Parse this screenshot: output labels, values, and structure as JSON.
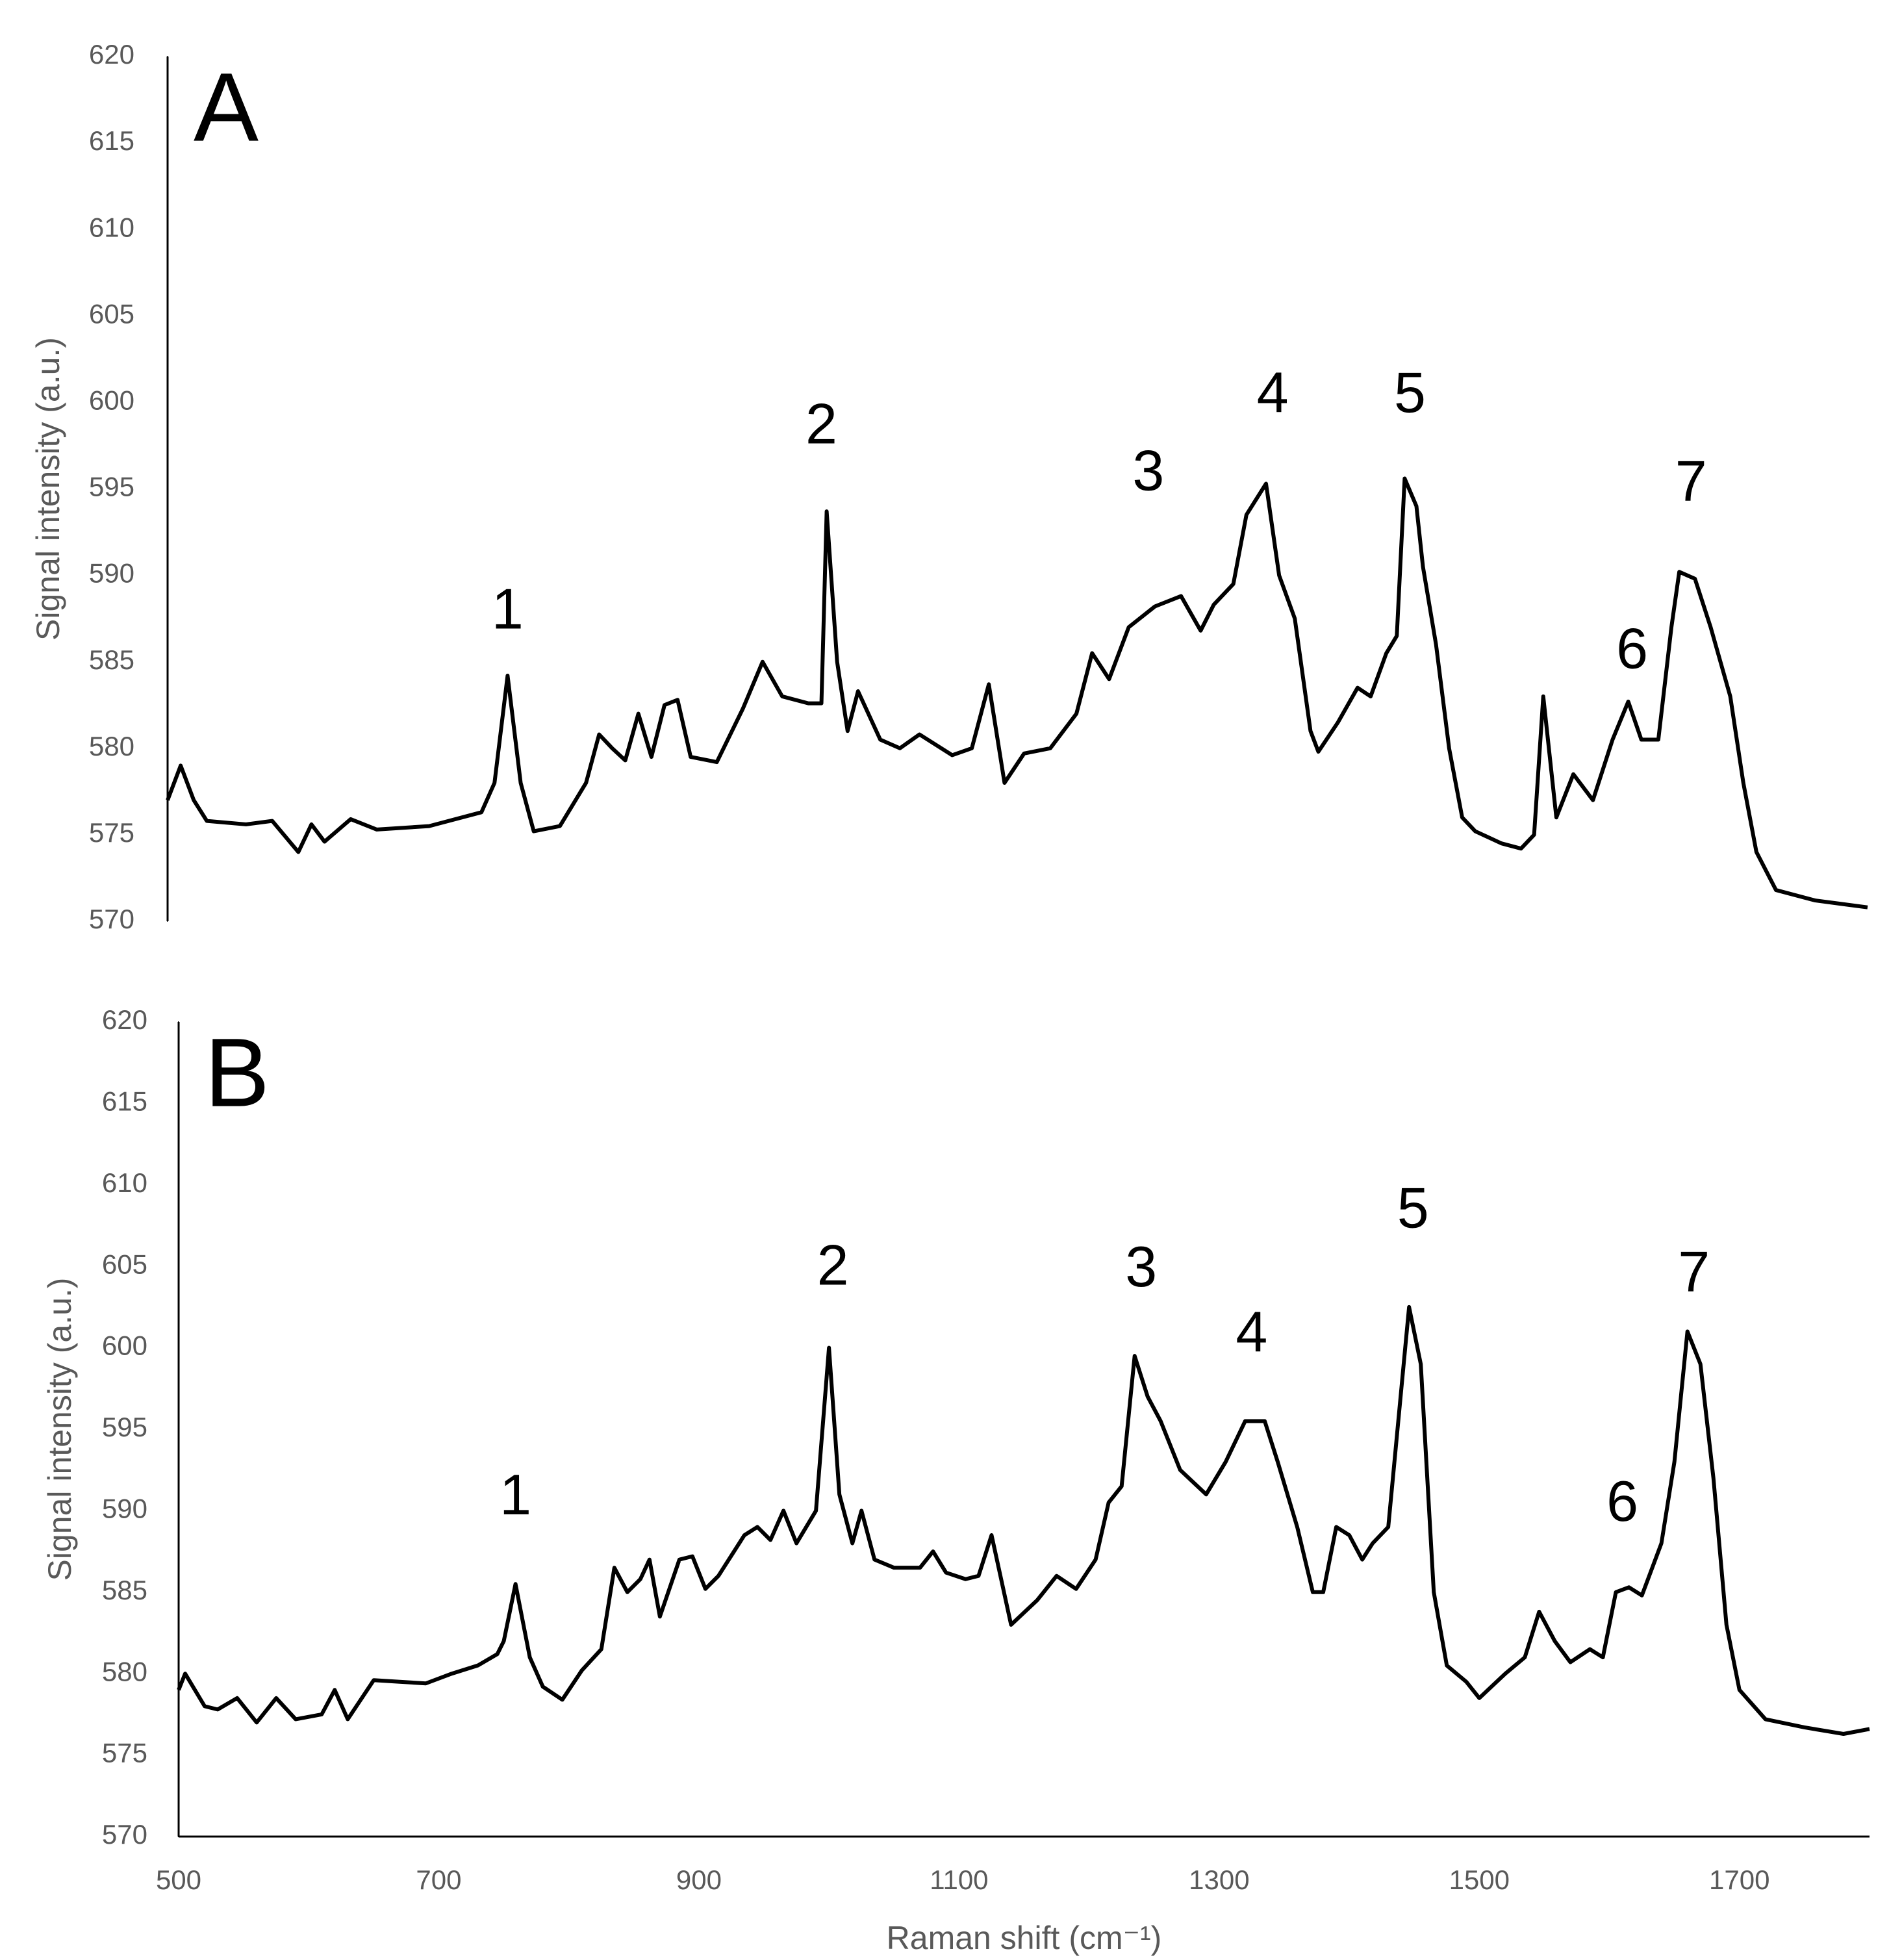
{
  "chart_data": [
    {
      "type": "line",
      "label": "A",
      "y_label": "Signal intensity (a.u.)",
      "xlim": [
        500,
        1800
      ],
      "ylim": [
        570,
        620
      ],
      "yticks": [
        570,
        575,
        580,
        585,
        590,
        595,
        600,
        605,
        610,
        615,
        620
      ],
      "x": [
        500,
        510,
        520,
        530,
        560,
        580,
        600,
        610,
        620,
        640,
        660,
        700,
        740,
        750,
        760,
        770,
        780,
        800,
        820,
        830,
        840,
        850,
        860,
        870,
        880,
        890,
        900,
        920,
        940,
        955,
        970,
        990,
        1000,
        1004,
        1012,
        1020,
        1028,
        1045,
        1060,
        1075,
        1100,
        1115,
        1128,
        1140,
        1155,
        1175,
        1195,
        1207,
        1220,
        1235,
        1255,
        1275,
        1290,
        1300,
        1315,
        1325,
        1340,
        1350,
        1362,
        1374,
        1380,
        1395,
        1410,
        1420,
        1432,
        1440,
        1446,
        1455,
        1460,
        1470,
        1480,
        1490,
        1500,
        1520,
        1535,
        1545,
        1552,
        1562,
        1575,
        1590,
        1605,
        1617,
        1627,
        1640,
        1650,
        1656,
        1668,
        1680,
        1695,
        1705,
        1715,
        1730,
        1760,
        1780,
        1800
      ],
      "series": [
        {
          "color": "#000000",
          "values": [
            577,
            579,
            577,
            575.8,
            575.6,
            575.8,
            574,
            575.6,
            574.6,
            575.9,
            575.3,
            575.5,
            576.3,
            578,
            584.2,
            578,
            575.2,
            575.5,
            578,
            580.8,
            580,
            579.3,
            582,
            579.5,
            582.5,
            582.8,
            579.5,
            579.2,
            582.3,
            585,
            583,
            582.6,
            582.6,
            593.7,
            585,
            581,
            583.3,
            580.5,
            580,
            580.8,
            579.6,
            580,
            583.7,
            578,
            579.7,
            580,
            582,
            585.5,
            584,
            587,
            588.2,
            588.8,
            586.8,
            588.3,
            589.5,
            593.5,
            595.3,
            590,
            587.5,
            581,
            579.8,
            581.5,
            583.5,
            583,
            585.5,
            586.5,
            595.6,
            594,
            590.5,
            586,
            580,
            576,
            575.2,
            574.5,
            574.2,
            575,
            583,
            576,
            578.5,
            577,
            580.5,
            582.7,
            580.5,
            580.5,
            587,
            590.2,
            589.8,
            587,
            583,
            578,
            574,
            571.8,
            571.2,
            571,
            570.8
          ]
        }
      ],
      "annotations": [
        {
          "text": "1",
          "x": 760,
          "y": 587.8
        },
        {
          "text": "2",
          "x": 1000,
          "y": 598.5
        },
        {
          "text": "3",
          "x": 1250,
          "y": 595.8
        },
        {
          "text": "4",
          "x": 1345,
          "y": 600.3
        },
        {
          "text": "5",
          "x": 1450,
          "y": 600.3
        },
        {
          "text": "6",
          "x": 1620,
          "y": 585.5
        },
        {
          "text": "7",
          "x": 1665,
          "y": 595.2
        }
      ]
    },
    {
      "type": "line",
      "label": "B",
      "y_label": "Signal intensity (a.u.)",
      "x_label": "Raman shift (cm⁻¹)",
      "xlim": [
        500,
        1800
      ],
      "ylim": [
        570,
        620
      ],
      "xticks": [
        500,
        700,
        900,
        1100,
        1300,
        1500,
        1700
      ],
      "yticks": [
        570,
        575,
        580,
        585,
        590,
        595,
        600,
        605,
        610,
        615,
        620
      ],
      "x": [
        500,
        505,
        520,
        530,
        545,
        560,
        575,
        590,
        610,
        620,
        630,
        650,
        670,
        690,
        710,
        730,
        745,
        750,
        759,
        770,
        780,
        795,
        810,
        825,
        835,
        845,
        855,
        862,
        870,
        885,
        895,
        905,
        915,
        935,
        945,
        955,
        965,
        975,
        990,
        1000,
        1008,
        1018,
        1025,
        1035,
        1050,
        1070,
        1080,
        1090,
        1105,
        1115,
        1125,
        1140,
        1160,
        1175,
        1190,
        1205,
        1215,
        1225,
        1235,
        1245,
        1255,
        1270,
        1290,
        1305,
        1320,
        1335,
        1345,
        1360,
        1372,
        1380,
        1390,
        1400,
        1410,
        1418,
        1430,
        1446,
        1455,
        1465,
        1475,
        1490,
        1500,
        1520,
        1535,
        1546,
        1558,
        1570,
        1585,
        1595,
        1605,
        1615,
        1625,
        1640,
        1650,
        1660,
        1670,
        1680,
        1690,
        1700,
        1720,
        1750,
        1780,
        1800
      ],
      "series": [
        {
          "color": "#000000",
          "values": [
            579,
            580,
            578,
            577.8,
            578.5,
            577,
            578.5,
            577.2,
            577.5,
            579,
            577.2,
            579.6,
            579.5,
            579.4,
            580,
            580.5,
            581.2,
            582,
            585.5,
            581,
            579.2,
            578.4,
            580.2,
            581.5,
            586.5,
            585,
            585.8,
            587,
            583.5,
            587,
            587.2,
            585.2,
            586,
            588.5,
            589,
            588.2,
            590,
            588,
            590,
            600,
            591,
            588,
            590,
            587,
            586.5,
            586.5,
            587.5,
            586.2,
            585.8,
            586,
            588.5,
            583,
            584.5,
            586,
            585.2,
            587,
            590.5,
            591.5,
            599.5,
            597,
            595.5,
            592.5,
            591,
            593,
            595.5,
            595.5,
            593,
            589,
            585,
            585,
            589,
            588.5,
            587,
            588,
            589,
            602.5,
            599,
            585,
            580.5,
            579.5,
            578.5,
            580,
            581,
            583.8,
            582,
            580.7,
            581.5,
            581,
            585,
            585.3,
            584.8,
            588,
            593,
            601,
            599,
            592,
            583,
            579,
            577.2,
            576.7,
            576.3,
            576.6
          ]
        }
      ],
      "annotations": [
        {
          "text": "1",
          "x": 759,
          "y": 590.7
        },
        {
          "text": "2",
          "x": 1003,
          "y": 604.8
        },
        {
          "text": "3",
          "x": 1240,
          "y": 604.7
        },
        {
          "text": "4",
          "x": 1325,
          "y": 600.7
        },
        {
          "text": "5",
          "x": 1449,
          "y": 608.3
        },
        {
          "text": "6",
          "x": 1610,
          "y": 590.3
        },
        {
          "text": "7",
          "x": 1665,
          "y": 604.4
        }
      ]
    }
  ]
}
